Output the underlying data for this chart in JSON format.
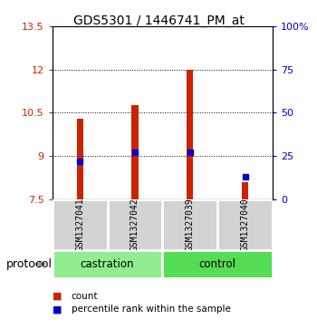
{
  "title": "GDS5301 / 1446741_PM_at",
  "samples": [
    "GSM1327041",
    "GSM1327042",
    "GSM1327039",
    "GSM1327040"
  ],
  "groups": [
    "castration",
    "castration",
    "control",
    "control"
  ],
  "bar_bottom": 7.5,
  "bar_values": [
    10.3,
    10.75,
    12.0,
    8.1
  ],
  "percentile_values": [
    22,
    27,
    27,
    13
  ],
  "ylim_left": [
    7.5,
    13.5
  ],
  "ylim_right": [
    0,
    100
  ],
  "yticks_left": [
    7.5,
    9.0,
    10.5,
    12.0,
    13.5
  ],
  "ytick_labels_left": [
    "7.5",
    "9",
    "10.5",
    "12",
    "13.5"
  ],
  "yticks_right": [
    0,
    25,
    50,
    75,
    100
  ],
  "ytick_labels_right": [
    "0",
    "25",
    "50",
    "75",
    "100%"
  ],
  "bar_color": "#cc2200",
  "percentile_color": "#0000cc",
  "sample_box_color": "#d3d3d3",
  "castration_color": "#90ee90",
  "control_color": "#55dd55",
  "legend_count_label": "count",
  "legend_percentile_label": "percentile rank within the sample",
  "protocol_label": "protocol",
  "bar_width": 0.12
}
